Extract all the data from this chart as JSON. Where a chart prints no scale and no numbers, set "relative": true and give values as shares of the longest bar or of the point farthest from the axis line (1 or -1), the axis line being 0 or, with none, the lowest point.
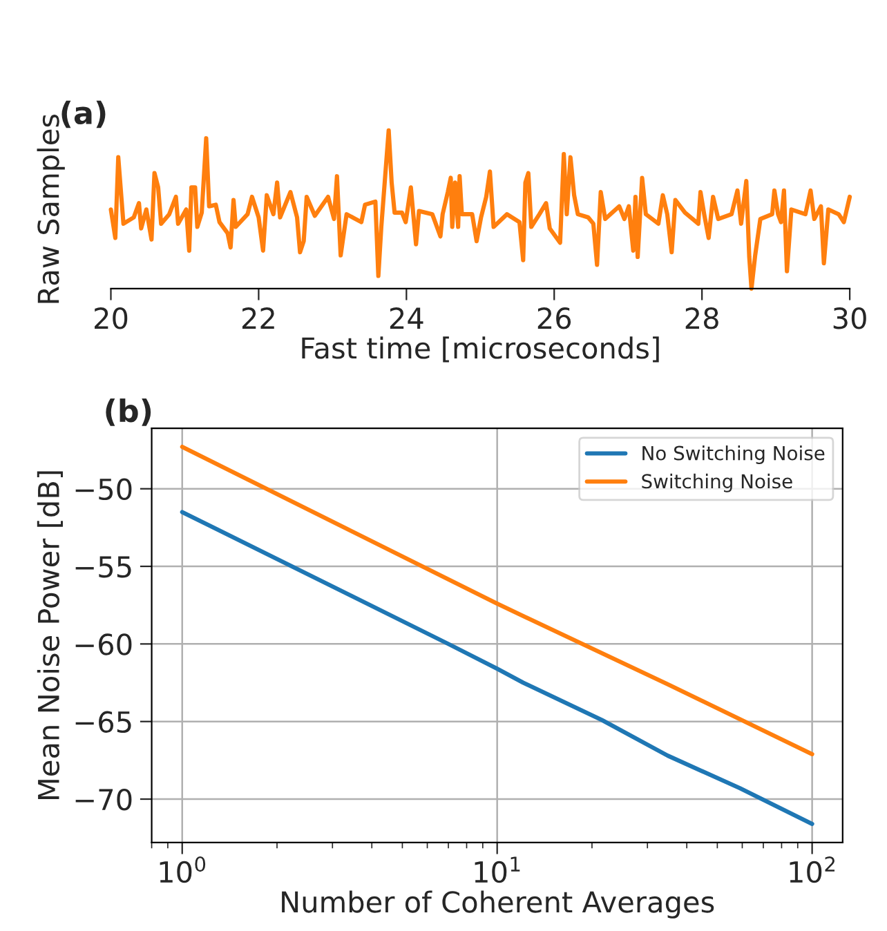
{
  "chart_data": [
    {
      "type": "line",
      "title": "(a)",
      "xlabel": "Fast time [microseconds]",
      "ylabel": "Raw Samples",
      "relative": true,
      "xlim": [
        20,
        30
      ],
      "xticks": [
        20,
        22,
        24,
        26,
        28,
        30
      ],
      "grid": false,
      "legend": false,
      "marker": "none",
      "line_style": "solid",
      "series": [
        {
          "color": "#ff7f0e",
          "x": [
            20.0,
            20.06,
            20.1,
            20.17,
            20.31,
            20.38,
            20.41,
            20.48,
            20.55,
            20.59,
            20.64,
            20.68,
            20.79,
            20.88,
            20.91,
            21.02,
            21.06,
            21.09,
            21.14,
            21.17,
            21.23,
            21.29,
            21.33,
            21.42,
            21.47,
            21.58,
            21.62,
            21.66,
            21.69,
            21.85,
            21.91,
            22.0,
            22.06,
            22.11,
            22.2,
            22.25,
            22.29,
            22.43,
            22.52,
            22.56,
            22.61,
            22.65,
            22.76,
            22.94,
            23.02,
            23.06,
            23.11,
            23.19,
            23.39,
            23.44,
            23.58,
            23.62,
            23.66,
            23.76,
            23.8,
            23.84,
            23.94,
            23.99,
            24.06,
            24.13,
            24.17,
            24.35,
            24.46,
            24.49,
            24.56,
            24.6,
            24.62,
            24.66,
            24.7,
            24.72,
            24.75,
            24.89,
            24.95,
            25.01,
            25.08,
            25.13,
            25.18,
            25.36,
            25.53,
            25.58,
            25.61,
            25.65,
            25.69,
            25.8,
            25.89,
            25.94,
            26.08,
            26.13,
            26.17,
            26.22,
            26.27,
            26.32,
            26.46,
            26.53,
            26.58,
            26.63,
            26.69,
            26.88,
            26.95,
            27.01,
            27.07,
            27.1,
            27.13,
            27.19,
            27.24,
            27.41,
            27.47,
            27.53,
            27.59,
            27.64,
            27.77,
            27.95,
            27.98,
            28.03,
            28.09,
            28.15,
            28.22,
            28.4,
            28.48,
            28.53,
            28.6,
            28.64,
            28.67,
            28.72,
            28.79,
            28.95,
            28.98,
            29.03,
            29.07,
            29.11,
            29.15,
            29.21,
            29.4,
            29.47,
            29.52,
            29.61,
            29.65,
            29.71,
            29.85,
            29.92,
            30.0
          ],
          "values": [
            0.5,
            0.32,
            0.83,
            0.41,
            0.45,
            0.54,
            0.38,
            0.5,
            0.31,
            0.73,
            0.64,
            0.41,
            0.47,
            0.58,
            0.41,
            0.5,
            0.24,
            0.64,
            0.64,
            0.39,
            0.48,
            0.95,
            0.52,
            0.53,
            0.42,
            0.35,
            0.26,
            0.56,
            0.39,
            0.47,
            0.58,
            0.45,
            0.24,
            0.59,
            0.47,
            0.67,
            0.45,
            0.61,
            0.45,
            0.23,
            0.3,
            0.58,
            0.46,
            0.58,
            0.44,
            0.71,
            0.21,
            0.47,
            0.42,
            0.53,
            0.55,
            0.08,
            0.39,
            1.0,
            0.67,
            0.48,
            0.48,
            0.42,
            0.64,
            0.28,
            0.49,
            0.47,
            0.33,
            0.47,
            0.61,
            0.7,
            0.39,
            0.67,
            0.39,
            0.71,
            0.47,
            0.47,
            0.3,
            0.45,
            0.58,
            0.74,
            0.39,
            0.47,
            0.42,
            0.18,
            0.67,
            0.73,
            0.39,
            0.47,
            0.54,
            0.38,
            0.29,
            0.85,
            0.47,
            0.83,
            0.59,
            0.47,
            0.45,
            0.41,
            0.15,
            0.61,
            0.44,
            0.52,
            0.44,
            0.52,
            0.24,
            0.58,
            0.2,
            0.7,
            0.47,
            0.41,
            0.59,
            0.47,
            0.23,
            0.56,
            0.48,
            0.41,
            0.61,
            0.47,
            0.32,
            0.58,
            0.44,
            0.47,
            0.62,
            0.41,
            0.68,
            0.2,
            0.0,
            0.21,
            0.44,
            0.47,
            0.62,
            0.47,
            0.42,
            0.62,
            0.11,
            0.5,
            0.47,
            0.62,
            0.44,
            0.52,
            0.16,
            0.5,
            0.47,
            0.42,
            0.58
          ]
        }
      ]
    },
    {
      "type": "line",
      "title": "(b)",
      "xlabel": "Number of Coherent Averages",
      "ylabel": "Mean Noise Power [dB]",
      "log": "x",
      "xlim": [
        0.8,
        125
      ],
      "xticks": [
        {
          "value": 1,
          "label": "10$^{0}$"
        },
        {
          "value": 10,
          "label": "10$^{1}$"
        },
        {
          "value": 100,
          "label": "10$^{2}$"
        }
      ],
      "ylim": [
        -72.8,
        -46.1
      ],
      "yticks": [
        {
          "value": -50,
          "label": "−50"
        },
        {
          "value": -55,
          "label": "−55"
        },
        {
          "value": -60,
          "label": "−60"
        },
        {
          "value": -65,
          "label": "−65"
        },
        {
          "value": -70,
          "label": "−70"
        }
      ],
      "grid": true,
      "legend": "top right",
      "marker": "none",
      "line_style": "solid",
      "series": [
        {
          "name": "No Switching Noise",
          "color": "#1f77b4",
          "x": [
            1,
            7.0,
            10,
            12.1,
            21.5,
            34.8,
            59,
            100
          ],
          "values": [
            -51.5,
            -60.0,
            -61.6,
            -62.5,
            -64.9,
            -67.2,
            -69.3,
            -71.6
          ]
        },
        {
          "name": "Switching Noise",
          "color": "#ff7f0e",
          "x": [
            1,
            10,
            12.1,
            34.8,
            100
          ],
          "values": [
            -47.3,
            -57.4,
            -58.2,
            -62.6,
            -67.1
          ]
        }
      ]
    }
  ]
}
